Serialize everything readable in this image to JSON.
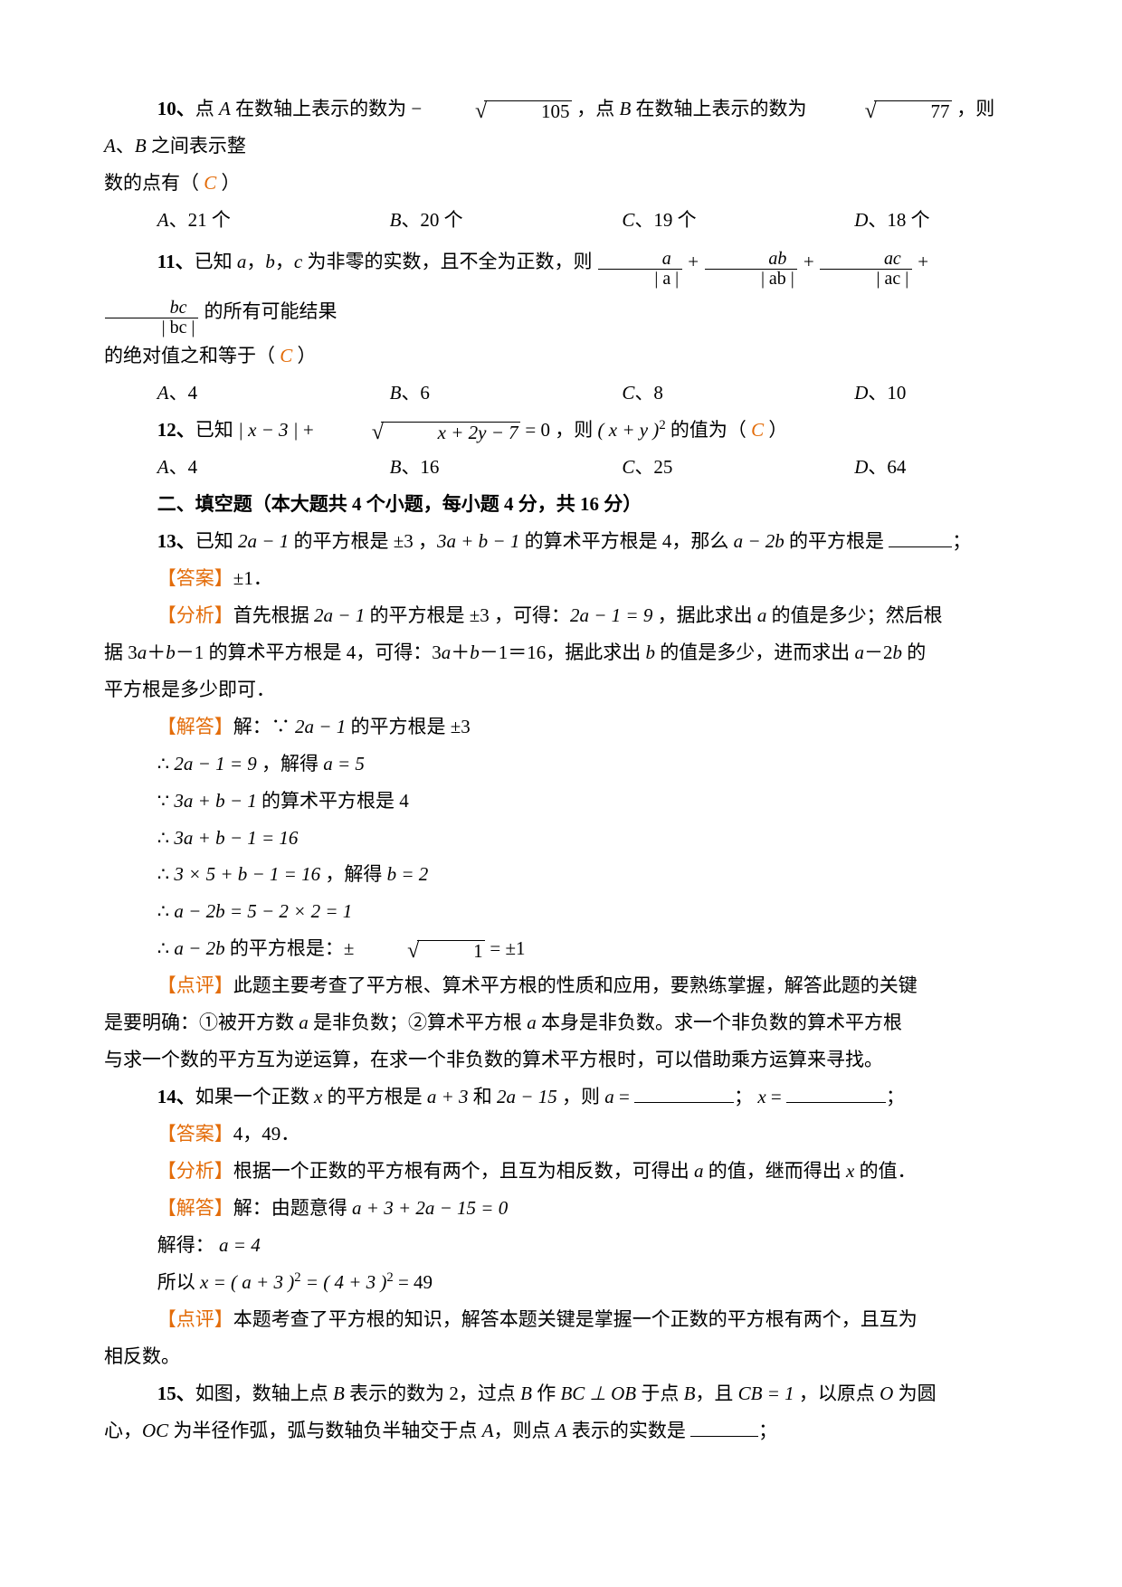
{
  "q10": {
    "number": "10、",
    "stem_prefix": "点 ",
    "A": "A",
    "stem_mid1": " 在数轴上表示的数为 ",
    "neg": "−",
    "sqrt105": "105",
    "stem_mid2": " ，点 ",
    "B": "B",
    "stem_mid3": " 在数轴上表示的数为 ",
    "sqrt77": "77",
    "stem_mid4": " ，则 ",
    "stem_mid5": "、",
    "stem_tail": " 之间表示整",
    "line2": "数的点有（  ",
    "ans_letter": "C",
    "line2_tail": "  ）",
    "optA_lbl": "A",
    "optA": "、21 个",
    "optB_lbl": "B",
    "optB": "、20 个",
    "optC_lbl": "C",
    "optC": "、19 个",
    "optD_lbl": "D",
    "optD": "、18 个"
  },
  "q11": {
    "number": "11、",
    "stem_prefix": "已知 ",
    "a": "a",
    "b": "b",
    "c": "c",
    "sep": "，",
    "stem_mid": " 为非零的实数，且不全为正数，则 ",
    "plus": " + ",
    "f1n": "a",
    "f1d": "| a |",
    "f2n": "ab",
    "f2d": "| ab |",
    "f3n": "ac",
    "f3d": "| ac |",
    "f4n": "bc",
    "f4d": "| bc |",
    "stem_tail": " 的所有可能结果",
    "line2": "的绝对值之和等于（  ",
    "ans_letter": "C",
    "line2_tail": "  ）",
    "optA_lbl": "A",
    "optA": "、4",
    "optB_lbl": "B",
    "optB": "、6",
    "optC_lbl": "C",
    "optC": "、8",
    "optD_lbl": "D",
    "optD": "、10"
  },
  "q12": {
    "number": "12、",
    "stem_prefix": "已知 ",
    "abs_expr": "| x − 3 |",
    "plus": " + ",
    "sqrt_expr": "x + 2y − 7",
    "eq0": " = 0 ，则 ",
    "paren_expr": "( x + y )",
    "sq": "2",
    "stem_tail": " 的值为（  ",
    "ans_letter": "C",
    "paren_close": "  ）",
    "optA_lbl": "A",
    "optA": "、4",
    "optB_lbl": "B",
    "optB": "、16",
    "optC_lbl": "C",
    "optC": "、25",
    "optD_lbl": "D",
    "optD": "、64"
  },
  "section2": "二、填空题（本大题共 4 个小题，每小题 4 分，共 16 分）",
  "labels": {
    "answer": "【答案】",
    "analysis": "【分析】",
    "solution": "【解答】",
    "comment": "【点评】"
  },
  "q13": {
    "number": "13、",
    "stem_a": "已知 ",
    "e1": "2a − 1",
    "stem_b": " 的平方根是 ",
    "pm3": "±3",
    "stem_c": " ，",
    "e2": "3a + b − 1",
    "stem_d": " 的算术平方根是 4，那么 ",
    "e3": "a − 2b",
    "stem_e": " 的平方根是 ",
    "semicolon": "；",
    "answer": "±1．",
    "ana_a": "首先根据 ",
    "ana_b": " 的平方根是 ",
    "ana_c": " ，可得：",
    "e4": "2a − 1 = 9",
    "ana_d": " ，据此求出 ",
    "a": "a",
    "ana_e": " 的值是多少；然后根",
    "ana_line2a": "据 3",
    "ana_line2b": "＋",
    "b": "b",
    "ana_line2c": "－1 的算术平方根是 4，可得：3",
    "ana_line2d": "－1＝16，据此求出 ",
    "ana_line2e": " 的值是多少，进而求出 ",
    "ana_line2f": "－2",
    "ana_line2g": " 的",
    "ana_line3": "平方根是多少即可．",
    "sol_head": "解：∵ ",
    "sol_head_tail": " 的平方根是 ",
    "s1a": "∴ ",
    "s1b": "2a − 1 = 9",
    "s1c": " ，解得 ",
    "s1d": "a = 5",
    "s2a": "∵ ",
    "s2b": "3a + b − 1",
    "s2c": " 的算术平方根是 4",
    "s3a": "∴ ",
    "s3b": "3a + b − 1 = 16",
    "s4a": "∴ ",
    "s4b": "3 × 5 + b − 1 = 16",
    "s4c": " ，解得 ",
    "s4d": "b = 2",
    "s5a": "∴ ",
    "s5b": "a − 2b = 5 − 2 × 2 = 1",
    "s6a": "∴ ",
    "s6b": "a − 2b",
    "s6c": " 的平方根是：",
    "s6d": "±",
    "s6_rad": "1",
    "s6e": " = ±1",
    "com1": "此题主要考查了平方根、算术平方根的性质和应用，要熟练掌握，解答此题的关键",
    "com2a": "是要明确：①被开方数 ",
    "com2b": " 是非负数；②算术平方根 ",
    "com2c": " 本身是非负数。求一个非负数的算术平方根",
    "com3": "与求一个数的平方互为逆运算，在求一个非负数的算术平方根时，可以借助乘方运算来寻找。"
  },
  "q14": {
    "number": "14、",
    "stem_a": "如果一个正数 ",
    "x": "x",
    "stem_b": " 的平方根是 ",
    "e1": "a + 3",
    "and": " 和 ",
    "e2": "2a − 15",
    "stem_c": " ，则 ",
    "a": "a",
    "eq": " = ",
    "sep": "；  ",
    "semicolon": "；",
    "answer": "4，49．",
    "ana_a": "根据一个正数的平方根有两个，且互为相反数，可得出 ",
    "ana_b": " 的值，继而得出 ",
    "ana_c": " 的值．",
    "sol_a": "解：由题意得 ",
    "sol_expr": "a + 3 + 2a − 15 = 0",
    "sol_b": "解得： ",
    "sol_c": "a = 4",
    "sol_d": "所以 ",
    "sol_e": "x = ( a + 3 )",
    "sq": "2",
    "sol_f": " = ( 4 + 3 )",
    "sol_g": " = 49",
    "com1": "本题考查了平方根的知识，解答本题关键是掌握一个正数的平方根有两个，且互为",
    "com2": "相反数。"
  },
  "q15": {
    "number": "15、",
    "stem_a": "如图，数轴上点 ",
    "B": "B",
    "stem_b": " 表示的数为 2，过点 ",
    "stem_c": " 作 ",
    "e1": "BC ⊥ OB",
    "stem_d": " 于点 ",
    "stem_e": "，且 ",
    "e2": "CB = 1",
    "stem_f": " ，以原点 ",
    "O": "O",
    "stem_g": " 为圆",
    "line2a": "心，",
    "OC": "OC",
    "line2b": " 为半径作弧，弧与数轴负半轴交于点 ",
    "A": "A",
    "line2c": "，则点 ",
    "line2d": " 表示的实数是 ",
    "semicolon": "；"
  },
  "style": {
    "blank_w1": 70,
    "blank_w2": 110,
    "blank_w3": 75
  }
}
